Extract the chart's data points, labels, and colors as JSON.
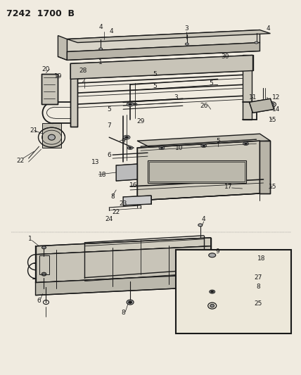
{
  "title": "7242  1700  B",
  "bg_color": "#f0ebe0",
  "line_color": "#1a1a1a",
  "fig_width": 4.28,
  "fig_height": 5.33,
  "dpi": 100
}
